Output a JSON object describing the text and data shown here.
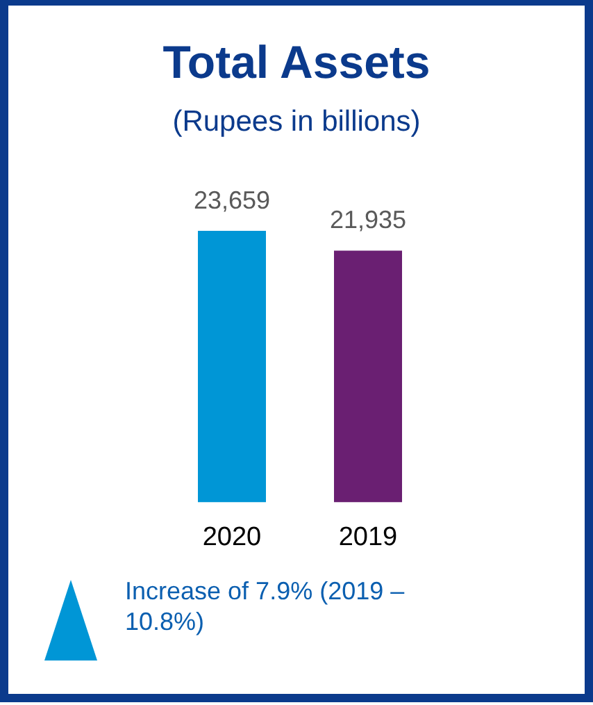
{
  "chart_data": {
    "type": "bar",
    "title": "Total Assets",
    "subtitle": "(Rupees in billions)",
    "categories": [
      "2020",
      "2019"
    ],
    "values": [
      23659,
      21935
    ],
    "colors": [
      "#0096d6",
      "#6a1f72"
    ],
    "data_labels": true,
    "value_labels": [
      "23,659",
      "21,935"
    ],
    "tick_labels": "x",
    "annotations": [
      "Increase of 7.9% (2019 – 10.8%)"
    ]
  }
}
